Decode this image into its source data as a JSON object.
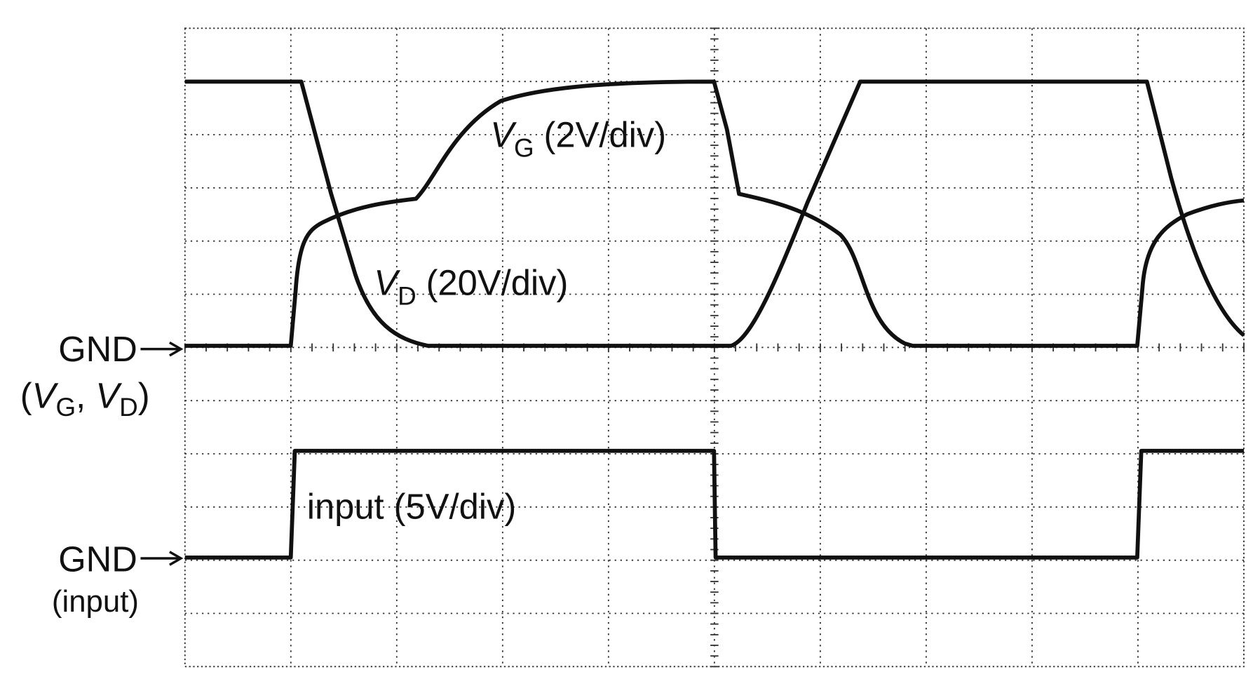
{
  "labels": {
    "vg": {
      "symbol": "V",
      "subscript": "G",
      "scale": "(2V/div)"
    },
    "vd": {
      "symbol": "V",
      "subscript": "D",
      "scale": "(20V/div)"
    },
    "input": "input (5V/div)",
    "gnd_top": {
      "text": "GND",
      "open": "(",
      "v1": "V",
      "s1": "G",
      "sep": ", ",
      "v2": "V",
      "s2": "D",
      "close": ")"
    },
    "gnd_bottom": {
      "text": "GND",
      "note": "(input)"
    }
  }
}
